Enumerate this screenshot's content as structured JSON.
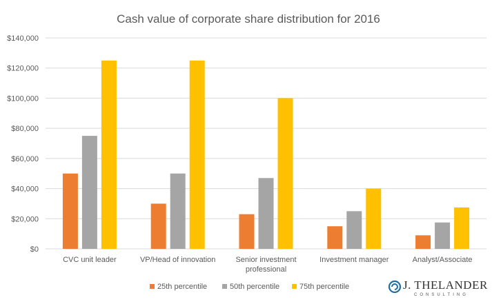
{
  "chart_data": {
    "type": "bar",
    "title": "Cash value of corporate share distribution for 2016",
    "categories": [
      [
        "CVC unit leader"
      ],
      [
        "VP/Head of innovation"
      ],
      [
        "Senior investment",
        "professional"
      ],
      [
        "Investment manager"
      ],
      [
        "Analyst/Associate"
      ]
    ],
    "series": [
      {
        "name": "25th percentile",
        "color": "#ed7d31",
        "values": [
          50000,
          30000,
          23000,
          15000,
          9000
        ]
      },
      {
        "name": "50th percentile",
        "color": "#a5a5a5",
        "values": [
          75000,
          50000,
          47000,
          25000,
          17500
        ]
      },
      {
        "name": "75th percentile",
        "color": "#ffc000",
        "values": [
          125000,
          125000,
          100000,
          40000,
          27500
        ]
      }
    ],
    "ylim": [
      0,
      140000
    ],
    "ytick_step": 20000,
    "ytick_labels": [
      "$0",
      "$20,000",
      "$40,000",
      "$60,000",
      "$80,000",
      "$100,000",
      "$120,000",
      "$140,000"
    ],
    "xlabel": "",
    "ylabel": "",
    "grid": true,
    "legend_position": "bottom"
  },
  "logo": {
    "main": "J. THELANDER",
    "sub": "CONSULTING",
    "color": "#1f6e9e"
  }
}
